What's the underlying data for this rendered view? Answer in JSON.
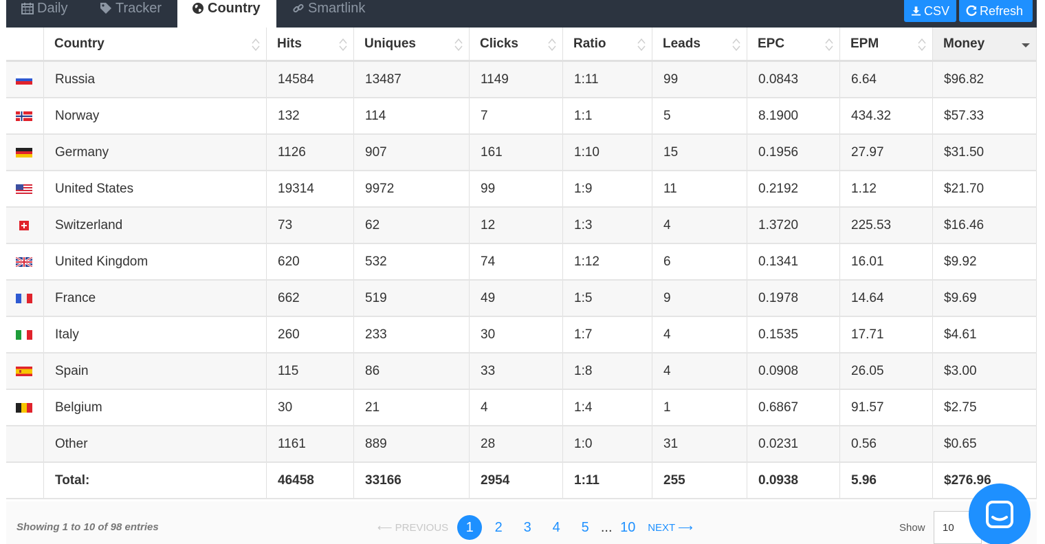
{
  "tabs": [
    {
      "label": "Daily",
      "icon": "calendar-icon",
      "active": false
    },
    {
      "label": "Tracker",
      "icon": "tag-icon",
      "active": false
    },
    {
      "label": "Country",
      "icon": "globe-icon",
      "active": true
    },
    {
      "label": "Smartlink",
      "icon": "link-icon",
      "active": false
    }
  ],
  "actions": {
    "csv_label": "CSV",
    "refresh_label": "Refresh"
  },
  "table": {
    "headers": [
      "Country",
      "Hits",
      "Uniques",
      "Clicks",
      "Ratio",
      "Leads",
      "EPC",
      "EPM",
      "Money"
    ],
    "rows": [
      {
        "flag": "ru",
        "country": "Russia",
        "hits": "14584",
        "uniques": "13487",
        "clicks": "1149",
        "ratio": "1:11",
        "leads": "99",
        "epc": "0.0843",
        "epm": "6.64",
        "money": "$96.82"
      },
      {
        "flag": "no",
        "country": "Norway",
        "hits": "132",
        "uniques": "114",
        "clicks": "7",
        "ratio": "1:1",
        "leads": "5",
        "epc": "8.1900",
        "epm": "434.32",
        "money": "$57.33"
      },
      {
        "flag": "de",
        "country": "Germany",
        "hits": "1126",
        "uniques": "907",
        "clicks": "161",
        "ratio": "1:10",
        "leads": "15",
        "epc": "0.1956",
        "epm": "27.97",
        "money": "$31.50"
      },
      {
        "flag": "us",
        "country": "United States",
        "hits": "19314",
        "uniques": "9972",
        "clicks": "99",
        "ratio": "1:9",
        "leads": "11",
        "epc": "0.2192",
        "epm": "1.12",
        "money": "$21.70"
      },
      {
        "flag": "ch",
        "country": "Switzerland",
        "hits": "73",
        "uniques": "62",
        "clicks": "12",
        "ratio": "1:3",
        "leads": "4",
        "epc": "1.3720",
        "epm": "225.53",
        "money": "$16.46"
      },
      {
        "flag": "gb",
        "country": "United Kingdom",
        "hits": "620",
        "uniques": "532",
        "clicks": "74",
        "ratio": "1:12",
        "leads": "6",
        "epc": "0.1341",
        "epm": "16.01",
        "money": "$9.92"
      },
      {
        "flag": "fr",
        "country": "France",
        "hits": "662",
        "uniques": "519",
        "clicks": "49",
        "ratio": "1:5",
        "leads": "9",
        "epc": "0.1978",
        "epm": "14.64",
        "money": "$9.69"
      },
      {
        "flag": "it",
        "country": "Italy",
        "hits": "260",
        "uniques": "233",
        "clicks": "30",
        "ratio": "1:7",
        "leads": "4",
        "epc": "0.1535",
        "epm": "17.71",
        "money": "$4.61"
      },
      {
        "flag": "es",
        "country": "Spain",
        "hits": "115",
        "uniques": "86",
        "clicks": "33",
        "ratio": "1:8",
        "leads": "4",
        "epc": "0.0908",
        "epm": "26.05",
        "money": "$3.00"
      },
      {
        "flag": "be",
        "country": "Belgium",
        "hits": "30",
        "uniques": "21",
        "clicks": "4",
        "ratio": "1:4",
        "leads": "1",
        "epc": "0.6867",
        "epm": "91.57",
        "money": "$2.75"
      },
      {
        "flag": "",
        "country": "Other",
        "hits": "1161",
        "uniques": "889",
        "clicks": "28",
        "ratio": "1:0",
        "leads": "31",
        "epc": "0.0231",
        "epm": "0.56",
        "money": "$0.65"
      }
    ],
    "total": {
      "label": "Total:",
      "hits": "46458",
      "uniques": "33166",
      "clicks": "2954",
      "ratio": "1:11",
      "leads": "255",
      "epc": "0.0938",
      "epm": "5.96",
      "money": "$276.96"
    }
  },
  "footer": {
    "info": "Showing 1 to 10 of 98 entries",
    "previous_label": "⟵ PREVIOUS",
    "pages": [
      "1",
      "2",
      "3",
      "4",
      "5"
    ],
    "ellipsis": "...",
    "last_page": "10",
    "next_label": "NEXT ⟶",
    "show_label": "Show",
    "page_size": "10"
  },
  "colors": {
    "accent": "#1e90ff",
    "tabbar": "#2c3440"
  }
}
